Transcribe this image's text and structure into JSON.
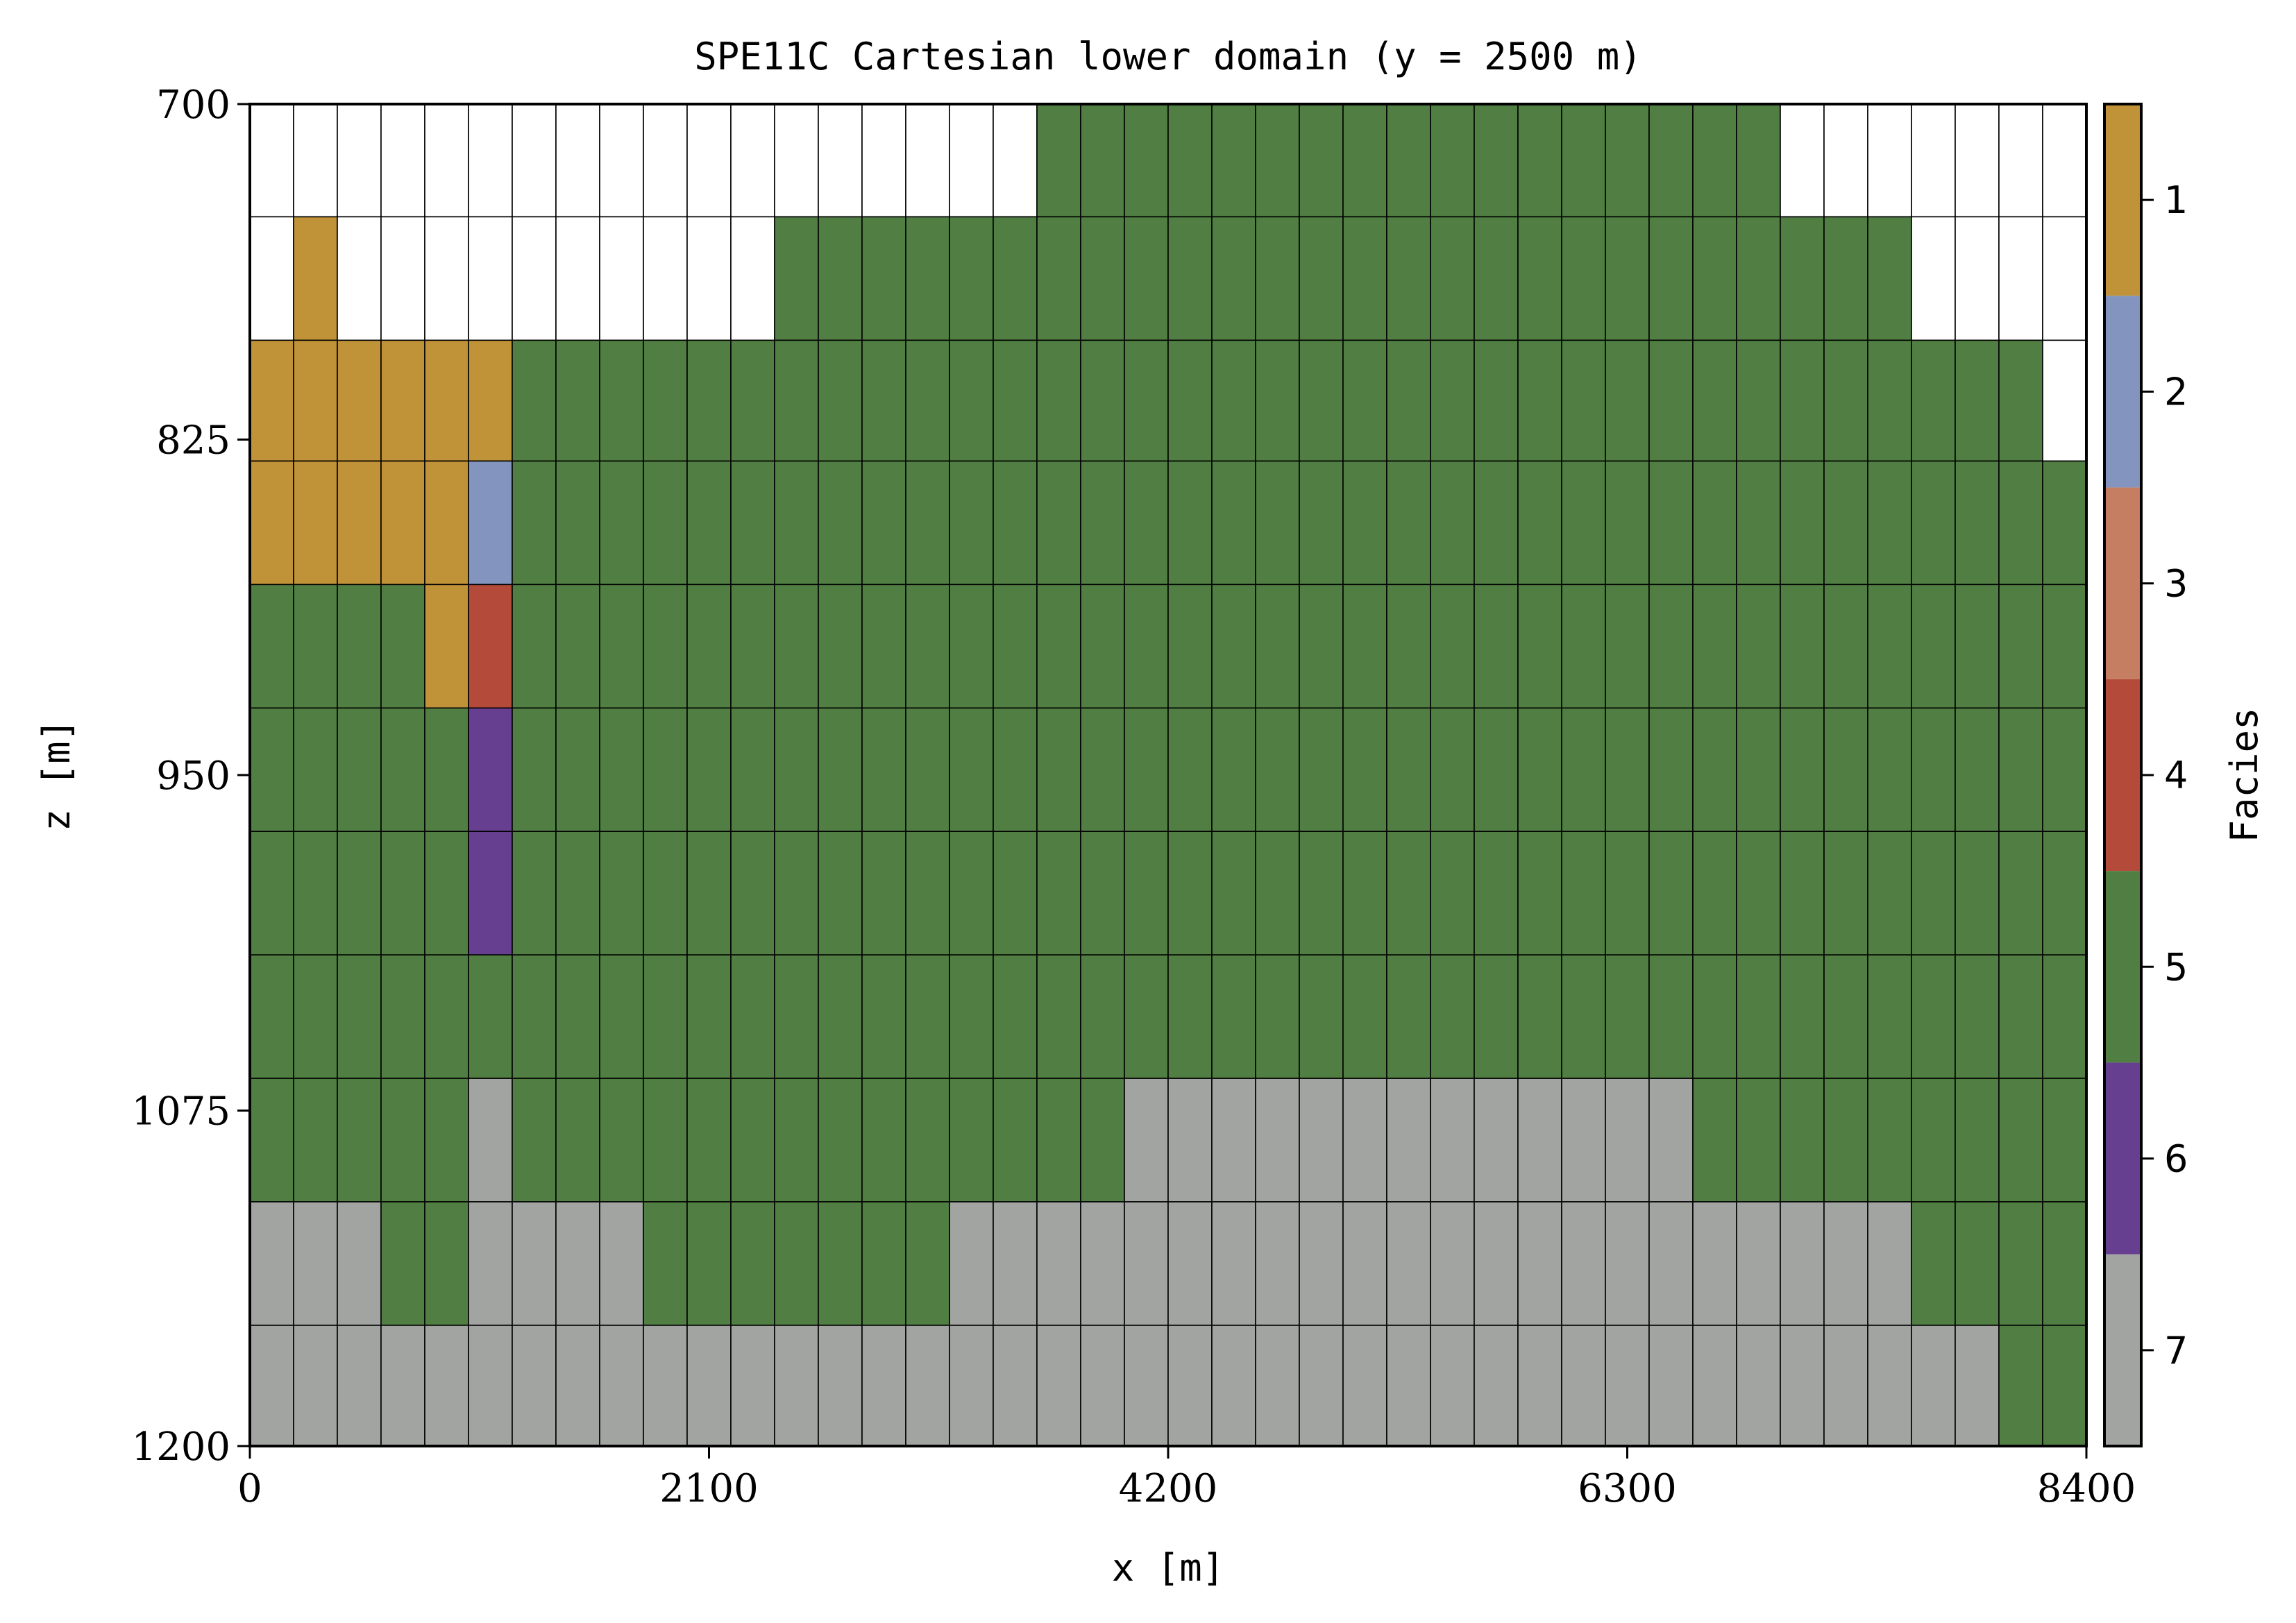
{
  "chart_data": {
    "type": "heatmap",
    "title": "SPE11C Cartesian lower domain (y = 2500 m)",
    "xlabel": "x [m]",
    "ylabel": "z [m]",
    "colorbar_label": "Facies",
    "xlim": [
      0,
      8400
    ],
    "ylim": [
      700,
      1200
    ],
    "y_inverted": true,
    "xticks": [
      "0",
      "2100",
      "4200",
      "6300",
      "8400"
    ],
    "yticks": [
      "700",
      "825",
      "950",
      "1075",
      "1200"
    ],
    "x_edges_step": 200,
    "z_edges": [
      700,
      742,
      788,
      833,
      879,
      925,
      971,
      1017,
      1063,
      1109,
      1155,
      1200
    ],
    "colorbar_ticks": [
      "1",
      "2",
      "3",
      "4",
      "5",
      "6",
      "7"
    ],
    "facies_colors": {
      "1": "#c09339",
      "2": "#8395be",
      "3": "#c57e61",
      "4": "#b34a3a",
      "5": "#517f43",
      "6": "#673f91",
      "7": "#a2a4a2"
    },
    "missing_color": "#ffffff",
    "grid_lines": true,
    "values": [
      [
        null,
        null,
        null,
        null,
        null,
        null,
        null,
        null,
        null,
        null,
        null,
        null,
        null,
        null,
        null,
        null,
        null,
        null,
        5,
        5,
        5,
        5,
        5,
        5,
        5,
        5,
        5,
        5,
        5,
        5,
        5,
        5,
        5,
        5,
        5,
        null,
        null,
        null,
        null,
        null,
        null,
        null
      ],
      [
        null,
        1,
        null,
        null,
        null,
        null,
        null,
        null,
        null,
        null,
        null,
        null,
        5,
        5,
        5,
        5,
        5,
        5,
        5,
        5,
        5,
        5,
        5,
        5,
        5,
        5,
        5,
        5,
        5,
        5,
        5,
        5,
        5,
        5,
        5,
        5,
        5,
        5,
        null,
        null,
        null,
        null
      ],
      [
        1,
        1,
        1,
        1,
        1,
        1,
        5,
        5,
        5,
        5,
        5,
        5,
        5,
        5,
        5,
        5,
        5,
        5,
        5,
        5,
        5,
        5,
        5,
        5,
        5,
        5,
        5,
        5,
        5,
        5,
        5,
        5,
        5,
        5,
        5,
        5,
        5,
        5,
        5,
        5,
        5,
        null
      ],
      [
        1,
        1,
        1,
        1,
        1,
        2,
        5,
        5,
        5,
        5,
        5,
        5,
        5,
        5,
        5,
        5,
        5,
        5,
        5,
        5,
        5,
        5,
        5,
        5,
        5,
        5,
        5,
        5,
        5,
        5,
        5,
        5,
        5,
        5,
        5,
        5,
        5,
        5,
        5,
        5,
        5,
        5
      ],
      [
        5,
        5,
        5,
        5,
        1,
        4,
        5,
        5,
        5,
        5,
        5,
        5,
        5,
        5,
        5,
        5,
        5,
        5,
        5,
        5,
        5,
        5,
        5,
        5,
        5,
        5,
        5,
        5,
        5,
        5,
        5,
        5,
        5,
        5,
        5,
        5,
        5,
        5,
        5,
        5,
        5,
        5
      ],
      [
        5,
        5,
        5,
        5,
        5,
        6,
        5,
        5,
        5,
        5,
        5,
        5,
        5,
        5,
        5,
        5,
        5,
        5,
        5,
        5,
        5,
        5,
        5,
        5,
        5,
        5,
        5,
        5,
        5,
        5,
        5,
        5,
        5,
        5,
        5,
        5,
        5,
        5,
        5,
        5,
        5,
        5
      ],
      [
        5,
        5,
        5,
        5,
        5,
        6,
        5,
        5,
        5,
        5,
        5,
        5,
        5,
        5,
        5,
        5,
        5,
        5,
        5,
        5,
        5,
        5,
        5,
        5,
        5,
        5,
        5,
        5,
        5,
        5,
        5,
        5,
        5,
        5,
        5,
        5,
        5,
        5,
        5,
        5,
        5,
        5
      ],
      [
        5,
        5,
        5,
        5,
        5,
        5,
        5,
        5,
        5,
        5,
        5,
        5,
        5,
        5,
        5,
        5,
        5,
        5,
        5,
        5,
        5,
        5,
        5,
        5,
        5,
        5,
        5,
        5,
        5,
        5,
        5,
        5,
        5,
        5,
        5,
        5,
        5,
        5,
        5,
        5,
        5,
        5
      ],
      [
        5,
        5,
        5,
        5,
        5,
        7,
        5,
        5,
        5,
        5,
        5,
        5,
        5,
        5,
        5,
        5,
        5,
        5,
        5,
        5,
        7,
        7,
        7,
        7,
        7,
        7,
        7,
        7,
        7,
        7,
        7,
        7,
        7,
        5,
        5,
        5,
        5,
        5,
        5,
        5,
        5,
        5
      ],
      [
        7,
        7,
        7,
        5,
        5,
        7,
        7,
        7,
        7,
        5,
        5,
        5,
        5,
        5,
        5,
        5,
        7,
        7,
        7,
        7,
        7,
        7,
        7,
        7,
        7,
        7,
        7,
        7,
        7,
        7,
        7,
        7,
        7,
        7,
        7,
        7,
        7,
        7,
        5,
        5,
        5,
        5
      ],
      [
        7,
        7,
        7,
        7,
        7,
        7,
        7,
        7,
        7,
        7,
        7,
        7,
        7,
        7,
        7,
        7,
        7,
        7,
        7,
        7,
        7,
        7,
        7,
        7,
        7,
        7,
        7,
        7,
        7,
        7,
        7,
        7,
        7,
        7,
        7,
        7,
        7,
        7,
        7,
        7,
        5,
        5
      ]
    ]
  }
}
